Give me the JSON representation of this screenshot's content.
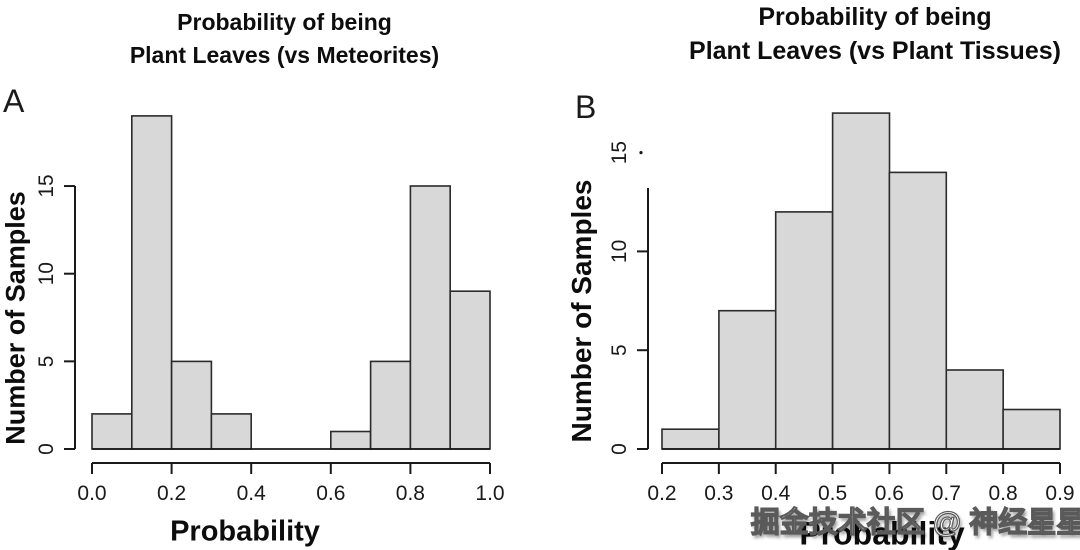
{
  "figure": {
    "watermark": "掘金技术社区 @ 神经星星",
    "background_color": "#ffffff",
    "bar_fill_color": "#d8d8d8",
    "bar_stroke_color": "#2b2b2b",
    "axis_color": "#1a1a1a"
  },
  "panels": [
    {
      "label": "A",
      "title_line1": "Probability of being",
      "title_line2": "Plant Leaves (vs Meteorites)",
      "ylabel": "Number of Samples",
      "xlabel": "Probability"
    },
    {
      "label": "B",
      "title_line1": "Probability of being",
      "title_line2": "Plant Leaves (vs Plant Tissues)",
      "ylabel": "Number of Samples",
      "xlabel": "Probability"
    }
  ],
  "chart_data": [
    {
      "type": "bar",
      "subtype": "histogram",
      "panel": "A",
      "title": "Probability of being Plant Leaves (vs Meteorites)",
      "xlabel": "Probability",
      "ylabel": "Number of Samples",
      "bin_edges": [
        0.0,
        0.1,
        0.2,
        0.3,
        0.4,
        0.5,
        0.6,
        0.7,
        0.8,
        0.9,
        1.0
      ],
      "values": [
        2,
        19,
        5,
        2,
        0,
        0,
        1,
        5,
        15,
        9
      ],
      "xlim": [
        0.0,
        1.0
      ],
      "ylim": [
        0,
        19
      ],
      "xtick_values": [
        0.0,
        0.2,
        0.4,
        0.6,
        0.8,
        1.0
      ],
      "xtick_labels": [
        "0.0",
        "0.2",
        "0.4",
        "0.6",
        "0.8",
        "1.0"
      ],
      "ytick_values": [
        0,
        5,
        10,
        15
      ],
      "ytick_labels": [
        "0",
        "5",
        "10",
        "15"
      ],
      "ytick_labels_rotated": true,
      "grid": false,
      "legend": false
    },
    {
      "type": "bar",
      "subtype": "histogram",
      "panel": "B",
      "title": "Probability of being Plant Leaves (vs Plant Tissues)",
      "xlabel": "Probability",
      "ylabel": "Number of Samples",
      "bin_edges": [
        0.2,
        0.3,
        0.4,
        0.5,
        0.6,
        0.7,
        0.8,
        0.9
      ],
      "values": [
        1,
        7,
        12,
        17,
        14,
        4,
        2
      ],
      "xlim": [
        0.2,
        0.9
      ],
      "ylim": [
        0,
        17
      ],
      "xtick_values": [
        0.2,
        0.3,
        0.4,
        0.5,
        0.6,
        0.7,
        0.8,
        0.9
      ],
      "xtick_labels": [
        "0.2",
        "0.3",
        "0.4",
        "0.5",
        "0.6",
        "0.7",
        "0.8",
        "0.9"
      ],
      "ytick_values": [
        0,
        5,
        10,
        15
      ],
      "ytick_labels": [
        "0",
        "5",
        "10",
        "15"
      ],
      "ytick_labels_rotated": true,
      "grid": false,
      "legend": false
    }
  ]
}
